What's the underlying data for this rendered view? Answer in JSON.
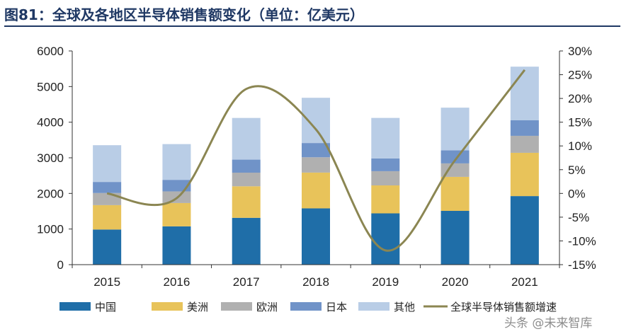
{
  "title": "图81：全球及各地区半导体销售额变化（单位：亿美元）",
  "watermark": "头条 @未来智库",
  "chart_data": {
    "type": "bar",
    "stacked": true,
    "title": "图81：全球及各地区半导体销售额变化（单位：亿美元）",
    "categories": [
      "2015",
      "2016",
      "2017",
      "2018",
      "2019",
      "2020",
      "2021"
    ],
    "series": [
      {
        "name": "中国",
        "color": "#1f6ea8",
        "values": [
          986,
          1075,
          1315,
          1580,
          1440,
          1510,
          1925
        ]
      },
      {
        "name": "美洲",
        "color": "#e8c35a",
        "values": [
          685,
          655,
          885,
          1005,
          785,
          955,
          1215
        ]
      },
      {
        "name": "欧洲",
        "color": "#b0b0b0",
        "values": [
          340,
          327,
          383,
          430,
          399,
          378,
          477
        ]
      },
      {
        "name": "日本",
        "color": "#7093c8",
        "values": [
          311,
          324,
          366,
          400,
          359,
          365,
          436
        ]
      },
      {
        "name": "其他",
        "color": "#b9cde6",
        "values": [
          1032,
          1004,
          1170,
          1270,
          1137,
          1200,
          1506
        ]
      }
    ],
    "line": {
      "name": "全球半导体销售额增速",
      "color": "#8b8652",
      "values": [
        0.0,
        -1.0,
        22.0,
        13.5,
        -12.0,
        7.0,
        26.0
      ]
    },
    "ylim": [
      0,
      6000
    ],
    "yticks": [
      "0",
      "1000",
      "2000",
      "3000",
      "4000",
      "5000",
      "6000"
    ],
    "y2lim": [
      -15,
      30
    ],
    "y2ticks": [
      "-15%",
      "-10%",
      "-5%",
      "0%",
      "5%",
      "10%",
      "15%",
      "20%",
      "25%",
      "30%"
    ],
    "legend_position": "bottom"
  }
}
